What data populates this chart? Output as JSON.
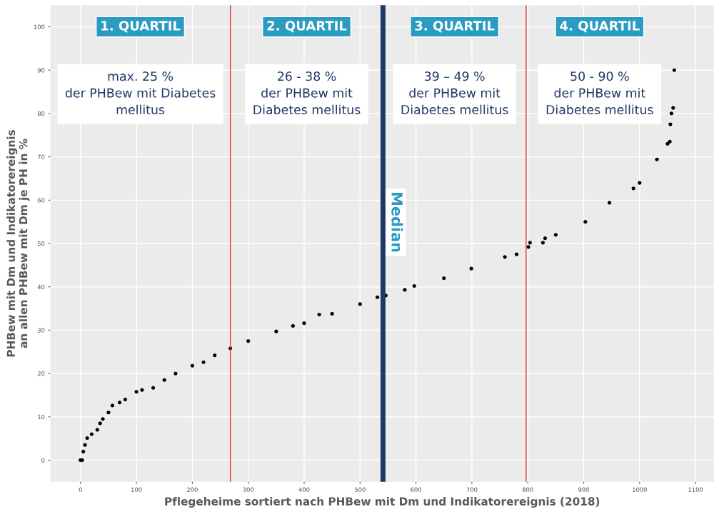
{
  "chart_data": {
    "type": "scatter",
    "xlabel": "Pflegeheime sortiert nach PHBew mit Dm und Indikatorereignis (2018)",
    "ylabel": "PHBew mit Dm und Indikatorereignis\nan allen PHBew mit Dm je PH in %",
    "series": [
      {
        "color": "#000000",
        "x": [
          0,
          3,
          5,
          8,
          12,
          20,
          30,
          35,
          40,
          50,
          57,
          70,
          80,
          100,
          110,
          130,
          150,
          170,
          200,
          220,
          240,
          268,
          300,
          350,
          380,
          400,
          427,
          450,
          500,
          531,
          546,
          580,
          597,
          650,
          699,
          759,
          780,
          801,
          804,
          827,
          831,
          850,
          903,
          946,
          989,
          1000,
          1031,
          1050,
          1054,
          1055,
          1057,
          1060,
          1062
        ],
        "values": [
          0,
          0,
          2,
          3.5,
          5.1,
          6,
          7,
          8.5,
          9.5,
          11,
          12.6,
          13.3,
          14,
          15.8,
          16.2,
          16.7,
          18.5,
          20,
          21.8,
          22.6,
          24.2,
          25.8,
          27.5,
          29.7,
          31,
          31.6,
          33.6,
          33.8,
          36,
          37.6,
          38,
          39.3,
          40.2,
          42,
          44.2,
          46.9,
          47.5,
          49.2,
          50.2,
          50.2,
          51.2,
          52,
          55,
          59.4,
          62.7,
          64,
          69.4,
          73,
          73.5,
          77.5,
          80,
          81.3,
          90
        ]
      }
    ],
    "xlim": [
      -54,
      1133
    ],
    "ylim": [
      -5,
      105
    ],
    "xticks": [
      0,
      100,
      200,
      300,
      400,
      500,
      600,
      700,
      800,
      900,
      1000,
      1100
    ],
    "yticks": [
      0,
      10,
      20,
      30,
      40,
      50,
      60,
      70,
      80,
      90,
      100
    ],
    "grid": true,
    "marker": "circle",
    "ref_lines": [
      {
        "axis": "x",
        "value": 268,
        "color": "#e0393e"
      },
      {
        "axis": "x",
        "value": 541,
        "color": "#1f3864",
        "label": "Median"
      },
      {
        "axis": "x",
        "value": 797,
        "color": "#e0393e"
      }
    ],
    "annotations": [
      "1. QUARTIL",
      "2. QUARTIL",
      "3. QUARTIL",
      "4. QUARTIL",
      "max. 25 %\nder PHBew mit Diabetes\nmellitus",
      "26 - 38 %\nder PHBew mit\nDiabetes mellitus",
      "39 – 49 %\nder PHBew mit\nDiabetes mellitus",
      "50 - 90 %\nder PHBew mit\nDiabetes mellitus"
    ]
  }
}
